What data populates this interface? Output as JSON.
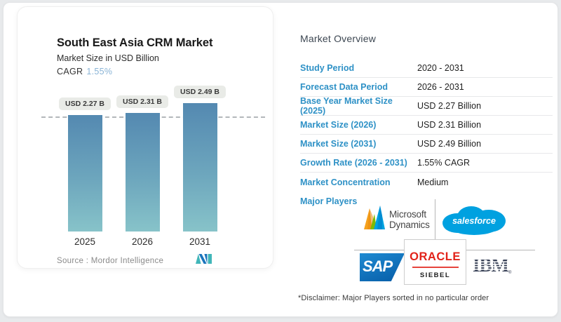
{
  "colors": {
    "accent-blue": "#2e91c6",
    "cagr-blue": "#8ab4d6",
    "bar-top": "#5489b1",
    "bar-bottom": "#87c3c9",
    "pill-bg": "#e9ebe7",
    "salesforce-blue": "#00A1E0",
    "sap-light": "#1e8ad2",
    "sap-dark": "#0a63ad",
    "oracle-red": "#e2231a",
    "ibm-navy": "#3a4358",
    "dynamics-orange": "#f5a11d",
    "dynamics-green": "#7fba00",
    "dynamics-blue": "#00a3e0",
    "mordor-teal": "#41b6b9",
    "mordor-blue": "#1b75bc"
  },
  "chart_card": {
    "title": "South East Asia CRM Market",
    "subtitle": "Market Size in USD Billion",
    "cagr_label": "CAGR",
    "cagr_value": "1.55%",
    "source_text": "Source :  Mordor Intelligence"
  },
  "chart_data": {
    "type": "bar",
    "title": "South East Asia CRM Market",
    "ylabel": "Market Size in USD Billion",
    "categories": [
      "2025",
      "2026",
      "2031"
    ],
    "values": [
      2.27,
      2.31,
      2.49
    ],
    "bar_labels": [
      "USD 2.27 B",
      "USD 2.31 B",
      "USD 2.49 B"
    ],
    "cagr_percent": 1.55,
    "ylim": [
      0,
      2.85
    ],
    "reference_line": {
      "style": "dashed",
      "value": 2.27
    },
    "grid": "off",
    "legend": "none"
  },
  "overview": {
    "heading": "Market Overview",
    "rows": [
      {
        "label": "Study Period",
        "value": "2020 - 2031"
      },
      {
        "label": "Forecast Data Period",
        "value": "2026 - 2031"
      },
      {
        "label": "Base Year Market Size (2025)",
        "value": "USD 2.27 Billion"
      },
      {
        "label": "Market Size (2026)",
        "value": "USD 2.31 Billion"
      },
      {
        "label": "Market Size (2031)",
        "value": "USD 2.49 Billion"
      },
      {
        "label": "Growth Rate (2026 - 2031)",
        "value": "1.55% CAGR"
      },
      {
        "label": "Market Concentration",
        "value": "Medium"
      }
    ],
    "disclaimer": "*Disclaimer: Major Players sorted in no particular order"
  },
  "players": {
    "label": "Major Players",
    "names": [
      "Microsoft Dynamics",
      "Salesforce",
      "SAP",
      "Oracle Siebel",
      "IBM"
    ],
    "microsoft_line1": "Microsoft",
    "microsoft_line2": "Dynamics",
    "salesforce_text": "salesforce",
    "sap_text": "SAP",
    "oracle_text": "ORACLE",
    "siebel_text": "SIEBEL",
    "ibm_text": "IBM"
  }
}
